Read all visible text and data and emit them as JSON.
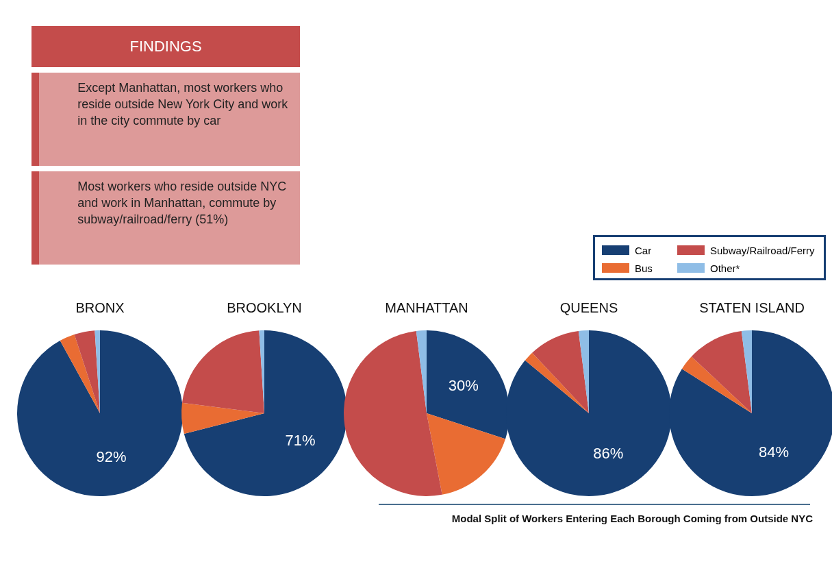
{
  "chart_data": [
    {
      "type": "other",
      "title": "FINDINGS",
      "annotations": [
        "Except Manhattan, most workers who reside outside New York City and work in the city commute by car",
        "Most workers who reside outside NYC and work in Manhattan, commute by subway/railroad/ferry (51%)"
      ]
    },
    {
      "type": "pie",
      "title": "BRONX",
      "categories": [
        "Car",
        "Bus",
        "Subway/Railroad/Ferry",
        "Other*"
      ],
      "values": [
        92,
        3,
        4,
        1
      ],
      "value_labels": [
        "92%",
        null,
        null,
        null
      ],
      "colors": [
        "#173f73",
        "#e96c33",
        "#c44c4b",
        "#8fbde6"
      ],
      "legend": "top right"
    },
    {
      "type": "pie",
      "title": "BROOKLYN",
      "categories": [
        null,
        null,
        null,
        null
      ],
      "values": [
        71,
        6,
        22,
        1
      ],
      "value_labels": [
        "71%",
        null,
        null,
        null
      ],
      "colors": [
        "#173f73",
        "#e96c33",
        "#c44c4b",
        "#8fbde6"
      ]
    },
    {
      "type": "pie",
      "title": "MANHATTAN",
      "categories": [
        null,
        null,
        null,
        null
      ],
      "values": [
        30,
        17,
        51,
        2
      ],
      "value_labels": [
        "30%",
        null,
        null,
        null
      ],
      "colors": [
        "#173f73",
        "#e96c33",
        "#c44c4b",
        "#8fbde6"
      ]
    },
    {
      "type": "pie",
      "title": "QUEENS",
      "categories": [
        null,
        null,
        null,
        null
      ],
      "values": [
        86,
        2,
        10,
        2
      ],
      "value_labels": [
        "86%",
        null,
        null,
        null
      ],
      "colors": [
        "#173f73",
        "#e96c33",
        "#c44c4b",
        "#8fbde6"
      ]
    },
    {
      "type": "pie",
      "title": "STATEN ISLAND",
      "categories": [
        null,
        null,
        null,
        null
      ],
      "values": [
        84,
        3,
        11,
        2
      ],
      "value_labels": [
        "84%",
        null,
        null,
        null
      ],
      "colors": [
        "#173f73",
        "#e96c33",
        "#c44c4b",
        "#8fbde6"
      ],
      "annotations": [
        "Modal Split of Workers Entering Each Borough Coming from Outside NYC"
      ]
    }
  ]
}
